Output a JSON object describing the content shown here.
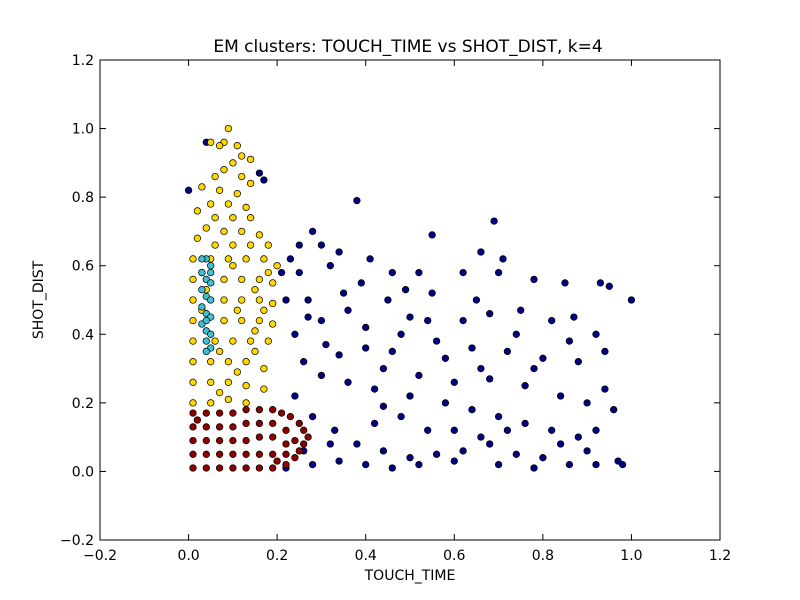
{
  "chart_data": {
    "type": "scatter",
    "title": "EM clusters: TOUCH_TIME vs SHOT_DIST, k=4",
    "xlabel": "TOUCH_TIME",
    "ylabel": "SHOT_DIST",
    "xlim": [
      -0.2,
      1.2
    ],
    "ylim": [
      -0.2,
      1.2
    ],
    "xticks": [
      "−0.2",
      "0.0",
      "0.2",
      "0.4",
      "0.6",
      "0.8",
      "1.0",
      "1.2"
    ],
    "yticks": [
      "−0.2",
      "0.0",
      "0.2",
      "0.4",
      "0.6",
      "0.8",
      "1.0",
      "1.2"
    ],
    "xtick_values": [
      -0.2,
      0.0,
      0.2,
      0.4,
      0.6,
      0.8,
      1.0,
      1.2
    ],
    "ytick_values": [
      -0.2,
      0.0,
      0.2,
      0.4,
      0.6,
      0.8,
      1.0,
      1.2
    ],
    "grid": false,
    "legend": "none",
    "series": [
      {
        "color": "#000080",
        "points": [
          [
            0.0,
            0.82
          ],
          [
            0.38,
            0.79
          ],
          [
            0.69,
            0.73
          ],
          [
            0.55,
            0.69
          ],
          [
            0.28,
            0.7
          ],
          [
            0.3,
            0.66
          ],
          [
            0.34,
            0.64
          ],
          [
            0.41,
            0.62
          ],
          [
            0.66,
            0.64
          ],
          [
            0.71,
            0.62
          ],
          [
            0.95,
            0.54
          ],
          [
            1.0,
            0.5
          ],
          [
            0.93,
            0.55
          ],
          [
            0.85,
            0.55
          ],
          [
            0.78,
            0.56
          ],
          [
            0.7,
            0.58
          ],
          [
            0.62,
            0.58
          ],
          [
            0.52,
            0.58
          ],
          [
            0.46,
            0.58
          ],
          [
            0.32,
            0.6
          ],
          [
            0.25,
            0.58
          ],
          [
            0.27,
            0.5
          ],
          [
            0.35,
            0.52
          ],
          [
            0.45,
            0.5
          ],
          [
            0.55,
            0.52
          ],
          [
            0.65,
            0.5
          ],
          [
            0.75,
            0.47
          ],
          [
            0.82,
            0.44
          ],
          [
            0.87,
            0.45
          ],
          [
            0.92,
            0.4
          ],
          [
            0.94,
            0.35
          ],
          [
            0.88,
            0.32
          ],
          [
            0.8,
            0.33
          ],
          [
            0.72,
            0.35
          ],
          [
            0.64,
            0.36
          ],
          [
            0.56,
            0.38
          ],
          [
            0.48,
            0.4
          ],
          [
            0.4,
            0.42
          ],
          [
            0.3,
            0.44
          ],
          [
            0.24,
            0.4
          ],
          [
            0.26,
            0.32
          ],
          [
            0.34,
            0.34
          ],
          [
            0.44,
            0.3
          ],
          [
            0.52,
            0.28
          ],
          [
            0.6,
            0.26
          ],
          [
            0.68,
            0.27
          ],
          [
            0.76,
            0.25
          ],
          [
            0.84,
            0.22
          ],
          [
            0.9,
            0.2
          ],
          [
            0.94,
            0.24
          ],
          [
            0.96,
            0.18
          ],
          [
            0.92,
            0.12
          ],
          [
            0.88,
            0.1
          ],
          [
            0.82,
            0.12
          ],
          [
            0.76,
            0.14
          ],
          [
            0.7,
            0.16
          ],
          [
            0.64,
            0.18
          ],
          [
            0.58,
            0.2
          ],
          [
            0.5,
            0.22
          ],
          [
            0.42,
            0.24
          ],
          [
            0.36,
            0.26
          ],
          [
            0.3,
            0.28
          ],
          [
            0.24,
            0.22
          ],
          [
            0.28,
            0.16
          ],
          [
            0.33,
            0.12
          ],
          [
            0.38,
            0.08
          ],
          [
            0.44,
            0.06
          ],
          [
            0.5,
            0.04
          ],
          [
            0.56,
            0.05
          ],
          [
            0.62,
            0.06
          ],
          [
            0.68,
            0.08
          ],
          [
            0.74,
            0.05
          ],
          [
            0.8,
            0.04
          ],
          [
            0.86,
            0.02
          ],
          [
            0.92,
            0.02
          ],
          [
            0.97,
            0.03
          ],
          [
            0.78,
            0.01
          ],
          [
            0.7,
            0.02
          ],
          [
            0.6,
            0.03
          ],
          [
            0.52,
            0.02
          ],
          [
            0.46,
            0.01
          ],
          [
            0.4,
            0.02
          ],
          [
            0.34,
            0.03
          ],
          [
            0.28,
            0.02
          ],
          [
            0.22,
            0.01
          ],
          [
            0.26,
            0.06
          ],
          [
            0.32,
            0.08
          ],
          [
            0.42,
            0.14
          ],
          [
            0.48,
            0.16
          ],
          [
            0.54,
            0.12
          ],
          [
            0.66,
            0.1
          ],
          [
            0.72,
            0.12
          ],
          [
            0.84,
            0.08
          ],
          [
            0.9,
            0.06
          ],
          [
            0.58,
            0.33
          ],
          [
            0.62,
            0.44
          ],
          [
            0.74,
            0.4
          ],
          [
            0.68,
            0.46
          ],
          [
            0.5,
            0.45
          ],
          [
            0.4,
            0.36
          ],
          [
            0.22,
            0.5
          ],
          [
            0.23,
            0.62
          ],
          [
            0.16,
            0.87
          ],
          [
            0.17,
            0.85
          ],
          [
            0.04,
            0.96
          ],
          [
            0.25,
            0.66
          ],
          [
            0.21,
            0.58
          ],
          [
            0.36,
            0.47
          ],
          [
            0.46,
            0.35
          ],
          [
            0.54,
            0.44
          ],
          [
            0.66,
            0.3
          ],
          [
            0.86,
            0.38
          ],
          [
            0.78,
            0.3
          ],
          [
            0.98,
            0.02
          ],
          [
            0.6,
            0.12
          ],
          [
            0.44,
            0.19
          ],
          [
            0.31,
            0.37
          ],
          [
            0.27,
            0.45
          ],
          [
            0.39,
            0.55
          ],
          [
            0.49,
            0.53
          ]
        ]
      },
      {
        "color": "#ffd700",
        "points": [
          [
            0.09,
            1.0
          ],
          [
            0.05,
            0.96
          ],
          [
            0.08,
            0.96
          ],
          [
            0.07,
            0.95
          ],
          [
            0.11,
            0.95
          ],
          [
            0.14,
            0.91
          ],
          [
            0.12,
            0.92
          ],
          [
            0.1,
            0.9
          ],
          [
            0.08,
            0.88
          ],
          [
            0.06,
            0.86
          ],
          [
            0.12,
            0.86
          ],
          [
            0.14,
            0.84
          ],
          [
            0.03,
            0.83
          ],
          [
            0.07,
            0.82
          ],
          [
            0.11,
            0.81
          ],
          [
            0.05,
            0.78
          ],
          [
            0.09,
            0.78
          ],
          [
            0.13,
            0.77
          ],
          [
            0.02,
            0.76
          ],
          [
            0.06,
            0.74
          ],
          [
            0.1,
            0.74
          ],
          [
            0.14,
            0.74
          ],
          [
            0.04,
            0.71
          ],
          [
            0.08,
            0.7
          ],
          [
            0.12,
            0.7
          ],
          [
            0.16,
            0.69
          ],
          [
            0.02,
            0.68
          ],
          [
            0.06,
            0.66
          ],
          [
            0.1,
            0.66
          ],
          [
            0.14,
            0.66
          ],
          [
            0.18,
            0.66
          ],
          [
            0.01,
            0.62
          ],
          [
            0.05,
            0.62
          ],
          [
            0.09,
            0.62
          ],
          [
            0.13,
            0.62
          ],
          [
            0.17,
            0.62
          ],
          [
            0.2,
            0.6
          ],
          [
            0.01,
            0.56
          ],
          [
            0.08,
            0.56
          ],
          [
            0.12,
            0.56
          ],
          [
            0.16,
            0.56
          ],
          [
            0.19,
            0.55
          ],
          [
            0.01,
            0.5
          ],
          [
            0.08,
            0.5
          ],
          [
            0.12,
            0.5
          ],
          [
            0.16,
            0.5
          ],
          [
            0.19,
            0.49
          ],
          [
            0.01,
            0.44
          ],
          [
            0.08,
            0.44
          ],
          [
            0.12,
            0.44
          ],
          [
            0.16,
            0.44
          ],
          [
            0.19,
            0.43
          ],
          [
            0.01,
            0.38
          ],
          [
            0.06,
            0.38
          ],
          [
            0.1,
            0.38
          ],
          [
            0.14,
            0.38
          ],
          [
            0.18,
            0.38
          ],
          [
            0.01,
            0.32
          ],
          [
            0.05,
            0.32
          ],
          [
            0.09,
            0.32
          ],
          [
            0.13,
            0.32
          ],
          [
            0.17,
            0.3
          ],
          [
            0.01,
            0.26
          ],
          [
            0.05,
            0.26
          ],
          [
            0.09,
            0.26
          ],
          [
            0.13,
            0.25
          ],
          [
            0.17,
            0.24
          ],
          [
            0.01,
            0.2
          ],
          [
            0.05,
            0.2
          ],
          [
            0.09,
            0.21
          ],
          [
            0.13,
            0.2
          ],
          [
            0.03,
            0.58
          ],
          [
            0.1,
            0.6
          ],
          [
            0.15,
            0.53
          ],
          [
            0.11,
            0.47
          ],
          [
            0.15,
            0.41
          ],
          [
            0.07,
            0.35
          ],
          [
            0.11,
            0.29
          ],
          [
            0.15,
            0.35
          ],
          [
            0.07,
            0.23
          ],
          [
            0.03,
            0.47
          ],
          [
            0.17,
            0.47
          ],
          [
            0.18,
            0.58
          ],
          [
            0.04,
            0.53
          ]
        ]
      },
      {
        "color": "#40c0d0",
        "points": [
          [
            0.04,
            0.62
          ],
          [
            0.05,
            0.6
          ],
          [
            0.03,
            0.58
          ],
          [
            0.04,
            0.56
          ],
          [
            0.05,
            0.55
          ],
          [
            0.03,
            0.53
          ],
          [
            0.04,
            0.51
          ],
          [
            0.05,
            0.5
          ],
          [
            0.03,
            0.48
          ],
          [
            0.04,
            0.46
          ],
          [
            0.05,
            0.45
          ],
          [
            0.03,
            0.43
          ],
          [
            0.04,
            0.41
          ],
          [
            0.05,
            0.4
          ],
          [
            0.04,
            0.38
          ],
          [
            0.05,
            0.36
          ],
          [
            0.04,
            0.35
          ],
          [
            0.05,
            0.58
          ],
          [
            0.03,
            0.62
          ],
          [
            0.04,
            0.44
          ]
        ]
      },
      {
        "color": "#8b0000",
        "points": [
          [
            0.01,
            0.17
          ],
          [
            0.04,
            0.17
          ],
          [
            0.07,
            0.17
          ],
          [
            0.1,
            0.17
          ],
          [
            0.13,
            0.18
          ],
          [
            0.16,
            0.18
          ],
          [
            0.19,
            0.18
          ],
          [
            0.21,
            0.17
          ],
          [
            0.23,
            0.16
          ],
          [
            0.25,
            0.14
          ],
          [
            0.26,
            0.12
          ],
          [
            0.27,
            0.1
          ],
          [
            0.26,
            0.08
          ],
          [
            0.25,
            0.06
          ],
          [
            0.24,
            0.04
          ],
          [
            0.22,
            0.02
          ],
          [
            0.19,
            0.01
          ],
          [
            0.16,
            0.01
          ],
          [
            0.13,
            0.01
          ],
          [
            0.1,
            0.01
          ],
          [
            0.07,
            0.01
          ],
          [
            0.04,
            0.01
          ],
          [
            0.01,
            0.01
          ],
          [
            0.01,
            0.05
          ],
          [
            0.01,
            0.09
          ],
          [
            0.01,
            0.13
          ],
          [
            0.04,
            0.13
          ],
          [
            0.07,
            0.13
          ],
          [
            0.1,
            0.13
          ],
          [
            0.13,
            0.14
          ],
          [
            0.16,
            0.14
          ],
          [
            0.19,
            0.14
          ],
          [
            0.22,
            0.12
          ],
          [
            0.04,
            0.09
          ],
          [
            0.07,
            0.09
          ],
          [
            0.1,
            0.09
          ],
          [
            0.13,
            0.09
          ],
          [
            0.16,
            0.1
          ],
          [
            0.19,
            0.1
          ],
          [
            0.22,
            0.08
          ],
          [
            0.04,
            0.05
          ],
          [
            0.07,
            0.05
          ],
          [
            0.1,
            0.05
          ],
          [
            0.13,
            0.05
          ],
          [
            0.16,
            0.05
          ],
          [
            0.19,
            0.05
          ],
          [
            0.22,
            0.05
          ],
          [
            0.24,
            0.09
          ],
          [
            0.02,
            0.15
          ],
          [
            0.2,
            0.03
          ]
        ]
      }
    ]
  }
}
